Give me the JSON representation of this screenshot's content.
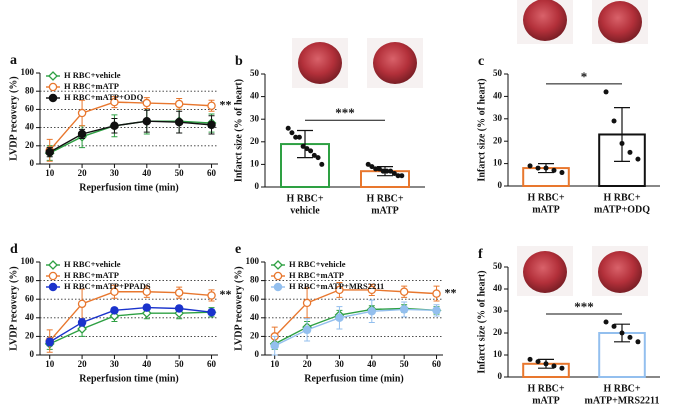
{
  "chart_data": [
    {
      "type": "line",
      "label": "a",
      "xlabel": "Reperfusion time (min)",
      "ylabel": "LVDP recovery (%)",
      "x": [
        10,
        20,
        30,
        40,
        50,
        60
      ],
      "xlim": [
        7,
        62
      ],
      "xticks": [
        10,
        20,
        30,
        40,
        50,
        60
      ],
      "ylim": [
        0,
        100
      ],
      "yticks": [
        0,
        20,
        40,
        60,
        80,
        100
      ],
      "grid": true,
      "annotation": "**",
      "series": [
        {
          "name": "H RBC+vehicle",
          "color": "#2ea043",
          "marker": "diamond-open",
          "values": [
            12,
            30,
            42,
            47,
            47,
            45
          ],
          "errors": [
            8,
            12,
            12,
            14,
            13,
            10
          ]
        },
        {
          "name": "H RBC+mATP",
          "color": "#e8772e",
          "marker": "circle-open",
          "values": [
            15,
            56,
            68,
            67,
            66,
            64
          ],
          "errors": [
            12,
            14,
            6,
            6,
            6,
            6
          ]
        },
        {
          "name": "H RBC+mATP+ODQ",
          "color": "#111111",
          "marker": "circle",
          "values": [
            13,
            33,
            42,
            47,
            46,
            43
          ],
          "errors": [
            5,
            5,
            8,
            12,
            12,
            10
          ]
        }
      ]
    },
    {
      "type": "bar",
      "label": "b",
      "ylabel": "Infarct size (% of heart)",
      "categories": [
        [
          "H RBC+",
          "vehicle"
        ],
        [
          "H RBC+",
          "mATP"
        ]
      ],
      "values": [
        19,
        7
      ],
      "errors": [
        6,
        2
      ],
      "colors": [
        "#2ea043",
        "#e8772e"
      ],
      "points": [
        [
          26,
          24,
          22,
          22,
          18,
          17,
          16,
          14,
          13,
          10
        ],
        [
          10,
          9,
          8,
          8,
          7,
          7,
          7,
          6,
          5,
          5
        ]
      ],
      "ylim": [
        0,
        50
      ],
      "yticks": [
        0,
        10,
        20,
        30,
        40,
        50
      ],
      "annotation": "***"
    },
    {
      "type": "bar",
      "label": "c",
      "ylabel": "Infarct size (% of heart)",
      "categories": [
        [
          "H RBC+",
          "mATP"
        ],
        [
          "H RBC+",
          "mATP+ODQ"
        ]
      ],
      "values": [
        8,
        23
      ],
      "errors": [
        2,
        12
      ],
      "colors": [
        "#e8772e",
        "#111111"
      ],
      "points": [
        [
          9,
          8,
          8,
          7,
          6
        ],
        [
          42,
          29,
          19,
          15,
          12
        ]
      ],
      "ylim": [
        0,
        50
      ],
      "yticks": [
        0,
        10,
        20,
        30,
        40,
        50
      ],
      "annotation": "*"
    },
    {
      "type": "line",
      "label": "d",
      "xlabel": "Reperfusion time (min)",
      "ylabel": "LVDP recovery (%)",
      "x": [
        10,
        20,
        30,
        40,
        50,
        60
      ],
      "xlim": [
        7,
        62
      ],
      "xticks": [
        10,
        20,
        30,
        40,
        50,
        60
      ],
      "ylim": [
        0,
        100
      ],
      "yticks": [
        0,
        20,
        40,
        60,
        80,
        100
      ],
      "grid": true,
      "annotation": "**",
      "series": [
        {
          "name": "H RBC+vehicle",
          "color": "#2ea043",
          "marker": "diamond-open",
          "values": [
            12,
            28,
            42,
            45,
            45,
            46
          ],
          "errors": [
            6,
            8,
            6,
            6,
            6,
            5
          ]
        },
        {
          "name": "H RBC+mATP",
          "color": "#e8772e",
          "marker": "circle-open",
          "values": [
            15,
            55,
            68,
            68,
            67,
            64
          ],
          "errors": [
            12,
            16,
            7,
            6,
            6,
            6
          ]
        },
        {
          "name": "H RBC+mATP+PPADS",
          "color": "#1a33cc",
          "marker": "circle",
          "values": [
            14,
            35,
            48,
            51,
            50,
            46
          ],
          "errors": [
            4,
            4,
            3,
            3,
            3,
            3
          ]
        }
      ]
    },
    {
      "type": "line",
      "label": "e",
      "xlabel": "Reperfusion time (min)",
      "ylabel": "LVDP recovery (%)",
      "x": [
        10,
        20,
        30,
        40,
        50,
        60
      ],
      "xlim": [
        7,
        62
      ],
      "xticks": [
        10,
        20,
        30,
        40,
        50,
        60
      ],
      "ylim": [
        0,
        100
      ],
      "yticks": [
        0,
        20,
        40,
        60,
        80,
        100
      ],
      "grid": true,
      "annotation": "**",
      "series": [
        {
          "name": "H RBC+vehicle",
          "color": "#2ea043",
          "marker": "diamond-open",
          "values": [
            12,
            30,
            43,
            49,
            50,
            48
          ],
          "errors": [
            6,
            6,
            5,
            4,
            4,
            4
          ]
        },
        {
          "name": "H RBC+mATP",
          "color": "#e8772e",
          "marker": "circle-open",
          "values": [
            20,
            56,
            70,
            70,
            68,
            66
          ],
          "errors": [
            10,
            16,
            8,
            6,
            6,
            8
          ]
        },
        {
          "name": "H RBC+mATP+MRS2211",
          "color": "#93bfee",
          "marker": "circle",
          "values": [
            10,
            27,
            40,
            47,
            49,
            48
          ],
          "errors": [
            10,
            12,
            12,
            12,
            8,
            6
          ]
        }
      ]
    },
    {
      "type": "bar",
      "label": "f",
      "ylabel": "Infarct size (% of heart)",
      "categories": [
        [
          "H RBC+",
          "mATP"
        ],
        [
          "H RBC+",
          "mATP+MRS2211"
        ]
      ],
      "values": [
        6,
        20
      ],
      "errors": [
        2,
        4
      ],
      "colors": [
        "#e8772e",
        "#93bfee"
      ],
      "points": [
        [
          8,
          7,
          6,
          5,
          4
        ],
        [
          25,
          23,
          20,
          18,
          16
        ]
      ],
      "ylim": [
        0,
        50
      ],
      "yticks": [
        0,
        10,
        20,
        30,
        40,
        50
      ],
      "annotation": "***"
    }
  ]
}
